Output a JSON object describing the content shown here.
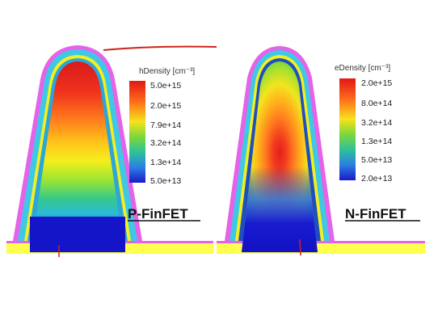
{
  "panels": [
    {
      "device_label": "P-FinFET",
      "legend_title": "hDensity [cm⁻³]",
      "legend_ticks": [
        "5.0e+15",
        "2.0e+15",
        "7.9e+14",
        "3.2e+14",
        "1.3e+14",
        "5.0e+13"
      ]
    },
    {
      "device_label": "N-FinFET",
      "legend_title": "eDensity [cm⁻³]",
      "legend_ticks": [
        "2.0e+15",
        "8.0e+14",
        "3.2e+14",
        "1.3e+14",
        "5.0e+13",
        "2.0e+13"
      ]
    }
  ],
  "colors": {
    "oxide_outer": "#e463e8",
    "oxide_mid": "#3fc8e6",
    "gate_band": "#f4ef1f",
    "substrate": "#ffff4d",
    "low_density": "#1e1ed0",
    "pen_mark": "#d0231d"
  }
}
